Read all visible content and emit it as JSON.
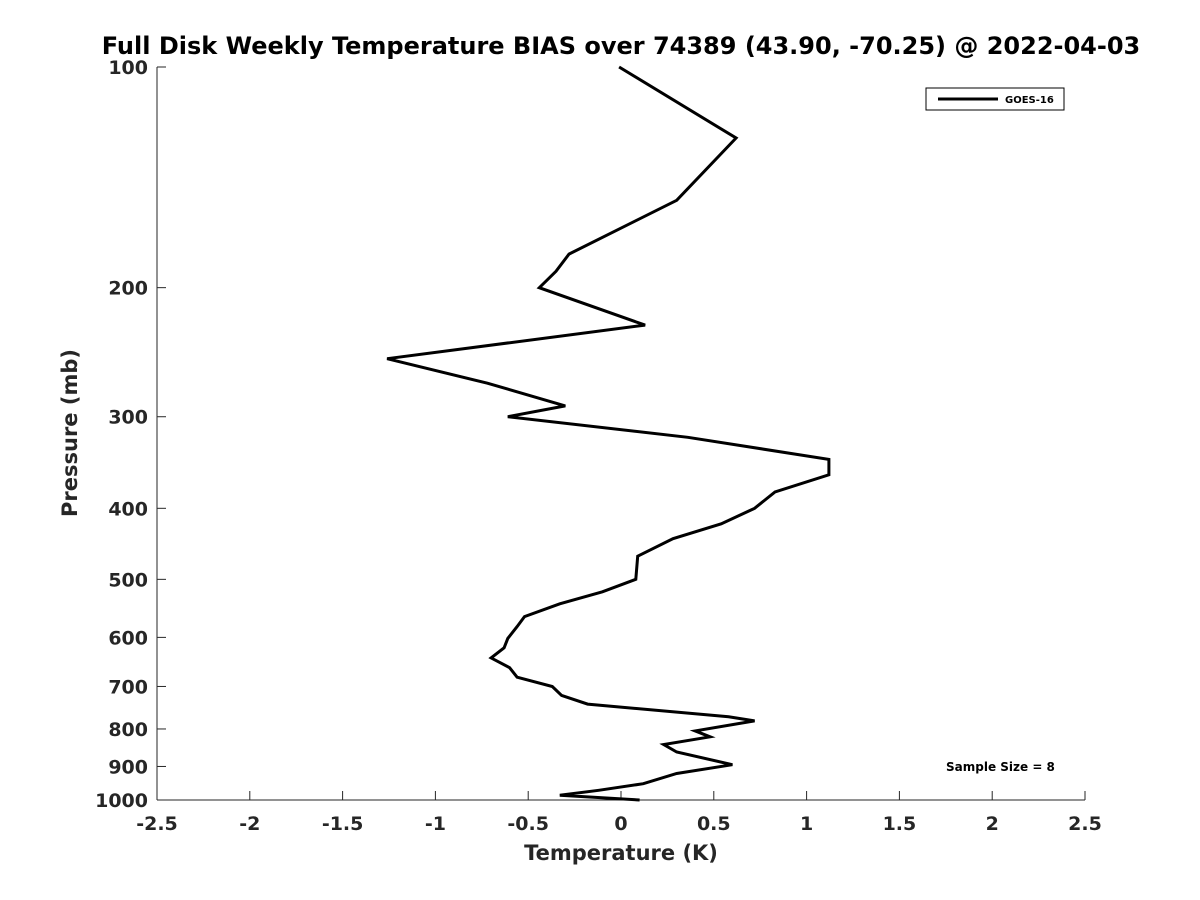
{
  "chart_data": {
    "type": "line",
    "title": "Full Disk Weekly Temperature BIAS over 74389 (43.90, -70.25) @ 2022-04-03",
    "xlabel": "Temperature (K)",
    "ylabel": "Pressure (mb)",
    "xlim": [
      -2.5,
      2.5
    ],
    "ylim": [
      100,
      1000
    ],
    "y_scale": "log",
    "y_reversed": true,
    "x_ticks": [
      "-2.5",
      "-2",
      "-1.5",
      "-1",
      "-0.5",
      "0",
      "0.5",
      "1",
      "1.5",
      "2",
      "2.5"
    ],
    "x_tick_values": [
      -2.5,
      -2,
      -1.5,
      -1,
      -0.5,
      0,
      0.5,
      1,
      1.5,
      2,
      2.5
    ],
    "y_ticks": [
      "100",
      "200",
      "300",
      "400",
      "500",
      "600",
      "700",
      "800",
      "900",
      "1000"
    ],
    "y_tick_values": [
      100,
      200,
      300,
      400,
      500,
      600,
      700,
      800,
      900,
      1000
    ],
    "grid": false,
    "legend_position": "top-right",
    "annotation": "Sample Size = 8",
    "series": [
      {
        "name": "GOES-16",
        "color": "#000000",
        "points": [
          {
            "t": -0.01,
            "p": 100
          },
          {
            "t": 0.62,
            "p": 125
          },
          {
            "t": 0.3,
            "p": 152
          },
          {
            "t": -0.28,
            "p": 180
          },
          {
            "t": -0.35,
            "p": 190
          },
          {
            "t": -0.44,
            "p": 200
          },
          {
            "t": 0.13,
            "p": 225
          },
          {
            "t": -1.26,
            "p": 250
          },
          {
            "t": -0.72,
            "p": 270
          },
          {
            "t": -0.3,
            "p": 290
          },
          {
            "t": -0.61,
            "p": 300
          },
          {
            "t": 0.36,
            "p": 320
          },
          {
            "t": 1.12,
            "p": 343
          },
          {
            "t": 1.12,
            "p": 360
          },
          {
            "t": 0.83,
            "p": 380
          },
          {
            "t": 0.72,
            "p": 400
          },
          {
            "t": 0.54,
            "p": 420
          },
          {
            "t": 0.28,
            "p": 440
          },
          {
            "t": 0.09,
            "p": 465
          },
          {
            "t": 0.08,
            "p": 500
          },
          {
            "t": -0.1,
            "p": 520
          },
          {
            "t": -0.33,
            "p": 540
          },
          {
            "t": -0.52,
            "p": 562
          },
          {
            "t": -0.56,
            "p": 580
          },
          {
            "t": -0.61,
            "p": 602
          },
          {
            "t": -0.63,
            "p": 620
          },
          {
            "t": -0.7,
            "p": 640
          },
          {
            "t": -0.6,
            "p": 660
          },
          {
            "t": -0.56,
            "p": 680
          },
          {
            "t": -0.37,
            "p": 700
          },
          {
            "t": -0.32,
            "p": 720
          },
          {
            "t": -0.18,
            "p": 740
          },
          {
            "t": 0.58,
            "p": 770
          },
          {
            "t": 0.72,
            "p": 780
          },
          {
            "t": 0.4,
            "p": 805
          },
          {
            "t": 0.48,
            "p": 820
          },
          {
            "t": 0.23,
            "p": 840
          },
          {
            "t": 0.3,
            "p": 860
          },
          {
            "t": 0.6,
            "p": 895
          },
          {
            "t": 0.3,
            "p": 920
          },
          {
            "t": 0.12,
            "p": 950
          },
          {
            "t": -0.12,
            "p": 970
          },
          {
            "t": -0.33,
            "p": 985
          },
          {
            "t": 0.1,
            "p": 1000
          }
        ]
      }
    ]
  }
}
